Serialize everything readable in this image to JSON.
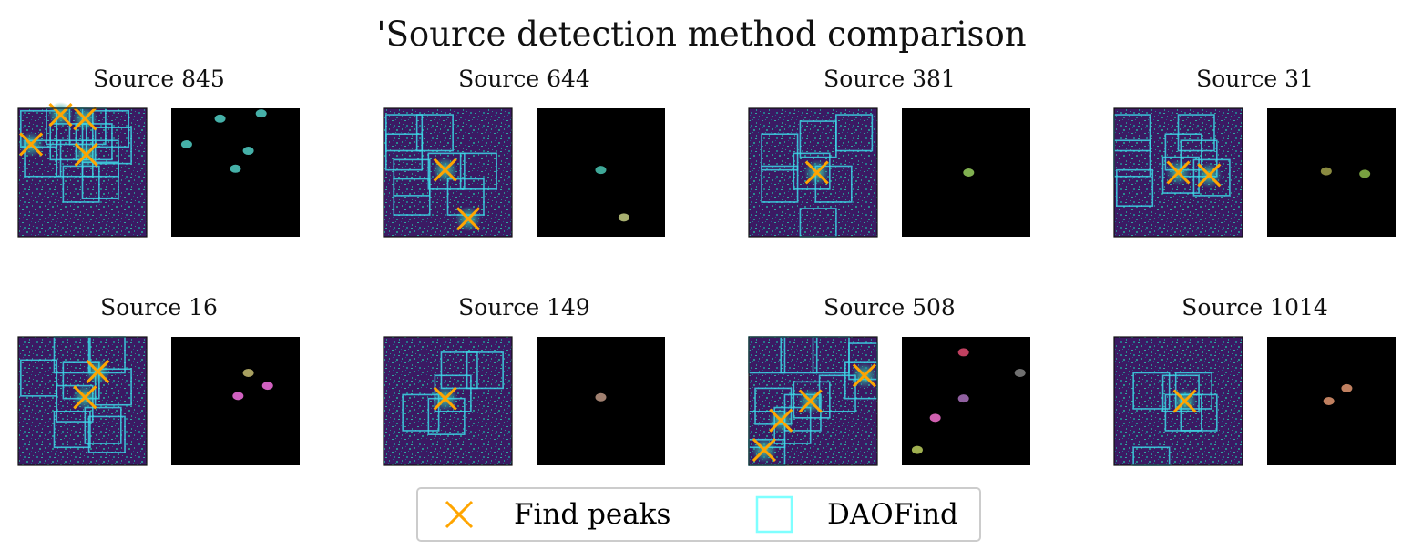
{
  "title": "'Source detection method comparison",
  "legend": {
    "items": [
      {
        "label": "Find peaks",
        "marker": "x",
        "color": "#FFA500"
      },
      {
        "label": "DAOFind",
        "marker": "square",
        "color": "#7FFFFF"
      }
    ]
  },
  "colors": {
    "cross": "#FFA500",
    "box": "#3ED6E6",
    "image_bg": "#3b1a63",
    "mask_bg": "#000000"
  },
  "chart_data": {
    "type": "scatter",
    "image_size": [
      100,
      100
    ],
    "panels": [
      {
        "title": "Source 845",
        "peaks": [
          [
            10,
            28
          ],
          [
            33,
            5
          ],
          [
            52,
            8
          ],
          [
            53,
            36
          ]
        ],
        "daofind_boxes": [
          [
            2,
            2
          ],
          [
            22,
            0
          ],
          [
            40,
            0
          ],
          [
            58,
            2
          ],
          [
            25,
            12
          ],
          [
            45,
            12
          ],
          [
            60,
            15
          ],
          [
            5,
            25
          ],
          [
            30,
            25
          ],
          [
            50,
            25
          ],
          [
            35,
            45
          ],
          [
            50,
            42
          ]
        ],
        "mask_blobs": [
          {
            "x": 38,
            "y": 8,
            "color": "#45b0a8"
          },
          {
            "x": 60,
            "y": 33,
            "color": "#45b0a8"
          },
          {
            "x": 12,
            "y": 28,
            "color": "#45b0a8"
          },
          {
            "x": 50,
            "y": 47,
            "color": "#45b0a8"
          },
          {
            "x": 70,
            "y": 4,
            "color": "#45b0a8"
          }
        ]
      },
      {
        "title": "Source 644",
        "peaks": [
          [
            48,
            48
          ],
          [
            66,
            86
          ]
        ],
        "daofind_boxes": [
          [
            2,
            5
          ],
          [
            26,
            5
          ],
          [
            8,
            40
          ],
          [
            35,
            35
          ],
          [
            60,
            35
          ],
          [
            50,
            55
          ],
          [
            8,
            55
          ],
          [
            2,
            20
          ]
        ],
        "mask_blobs": [
          {
            "x": 50,
            "y": 48,
            "color": "#3fa898"
          },
          {
            "x": 68,
            "y": 85,
            "color": "#a8b070"
          }
        ]
      },
      {
        "title": "Source 381",
        "peaks": [
          [
            53,
            50
          ]
        ],
        "daofind_boxes": [
          [
            40,
            10
          ],
          [
            10,
            20
          ],
          [
            68,
            5
          ],
          [
            35,
            35
          ],
          [
            52,
            45
          ],
          [
            40,
            78
          ],
          [
            10,
            45
          ]
        ],
        "mask_blobs": [
          {
            "x": 52,
            "y": 50,
            "color": "#80b050"
          }
        ]
      },
      {
        "title": "Source 31",
        "peaks": [
          [
            50,
            50
          ],
          [
            74,
            52
          ]
        ],
        "daofind_boxes": [
          [
            50,
            5
          ],
          [
            52,
            25
          ],
          [
            0,
            25
          ],
          [
            2,
            48
          ],
          [
            38,
            38
          ],
          [
            62,
            40
          ],
          [
            40,
            20
          ],
          [
            0,
            5
          ]
        ],
        "mask_blobs": [
          {
            "x": 46,
            "y": 49,
            "color": "#8a8a40"
          },
          {
            "x": 76,
            "y": 51,
            "color": "#78a040"
          }
        ]
      },
      {
        "title": "Source 16",
        "peaks": [
          [
            62,
            27
          ],
          [
            52,
            47
          ]
        ],
        "daofind_boxes": [
          [
            28,
            0
          ],
          [
            55,
            0
          ],
          [
            60,
            25
          ],
          [
            35,
            20
          ],
          [
            30,
            38
          ],
          [
            52,
            55
          ],
          [
            2,
            18
          ],
          [
            55,
            62
          ],
          [
            28,
            58
          ]
        ],
        "mask_blobs": [
          {
            "x": 60,
            "y": 28,
            "color": "#a8a060"
          },
          {
            "x": 52,
            "y": 46,
            "color": "#d060c0"
          },
          {
            "x": 75,
            "y": 38,
            "color": "#d060c0"
          }
        ]
      },
      {
        "title": "Source 149",
        "peaks": [
          [
            48,
            48
          ]
        ],
        "daofind_boxes": [
          [
            45,
            12
          ],
          [
            65,
            12
          ],
          [
            40,
            30
          ],
          [
            15,
            45
          ],
          [
            35,
            48
          ]
        ],
        "mask_blobs": [
          {
            "x": 50,
            "y": 47,
            "color": "#a08070"
          }
        ]
      },
      {
        "title": "Source 508",
        "peaks": [
          [
            90,
            30
          ],
          [
            48,
            50
          ],
          [
            25,
            65
          ],
          [
            12,
            88
          ]
        ],
        "daofind_boxes": [
          [
            0,
            0
          ],
          [
            25,
            0
          ],
          [
            50,
            0
          ],
          [
            78,
            5
          ],
          [
            5,
            40
          ],
          [
            35,
            35
          ],
          [
            55,
            30
          ],
          [
            75,
            20
          ],
          [
            0,
            58
          ],
          [
            20,
            55
          ],
          [
            0,
            80
          ],
          [
            28,
            45
          ]
        ],
        "mask_blobs": [
          {
            "x": 48,
            "y": 48,
            "color": "#9060a0"
          },
          {
            "x": 48,
            "y": 12,
            "color": "#c04060"
          },
          {
            "x": 92,
            "y": 28,
            "color": "#707070"
          },
          {
            "x": 12,
            "y": 88,
            "color": "#a0b050"
          },
          {
            "x": 26,
            "y": 63,
            "color": "#d060b0"
          }
        ]
      },
      {
        "title": "Source 1014",
        "peaks": [
          [
            55,
            50
          ]
        ],
        "daofind_boxes": [
          [
            15,
            28
          ],
          [
            38,
            30
          ],
          [
            48,
            28
          ],
          [
            52,
            45
          ],
          [
            40,
            45
          ],
          [
            15,
            86
          ]
        ],
        "mask_blobs": [
          {
            "x": 62,
            "y": 40,
            "color": "#c08060"
          },
          {
            "x": 48,
            "y": 50,
            "color": "#c08060"
          }
        ]
      }
    ]
  }
}
